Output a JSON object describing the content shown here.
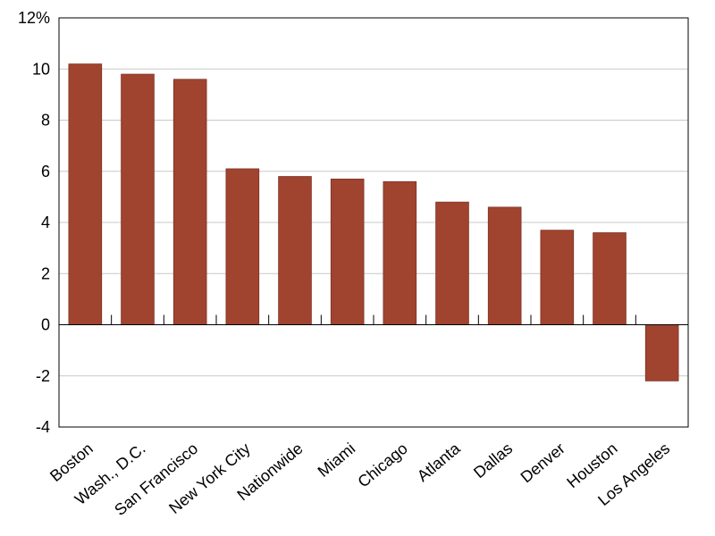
{
  "chart_data": {
    "type": "bar",
    "title": "",
    "xlabel": "",
    "ylabel": "",
    "categories": [
      "Boston",
      "Wash., D.C.",
      "San Francisco",
      "New York City",
      "Nationwide",
      "Miami",
      "Chicago",
      "Atlanta",
      "Dallas",
      "Denver",
      "Houston",
      "Los Angeles"
    ],
    "values": [
      10.2,
      9.8,
      9.6,
      6.1,
      5.8,
      5.7,
      5.6,
      4.8,
      4.6,
      3.7,
      3.6,
      -2.2
    ],
    "ylim": [
      -4,
      12
    ],
    "yticks": [
      -4,
      -2,
      0,
      2,
      4,
      6,
      8,
      10,
      12
    ],
    "ytick_labels": [
      "-4",
      "-2",
      "0",
      "2",
      "4",
      "6",
      "8",
      "10",
      "12%"
    ],
    "grid": true,
    "legend": "none",
    "colors": {
      "bar": "#a0432f",
      "grid": "#c8c8c8",
      "axis": "#000000"
    }
  }
}
